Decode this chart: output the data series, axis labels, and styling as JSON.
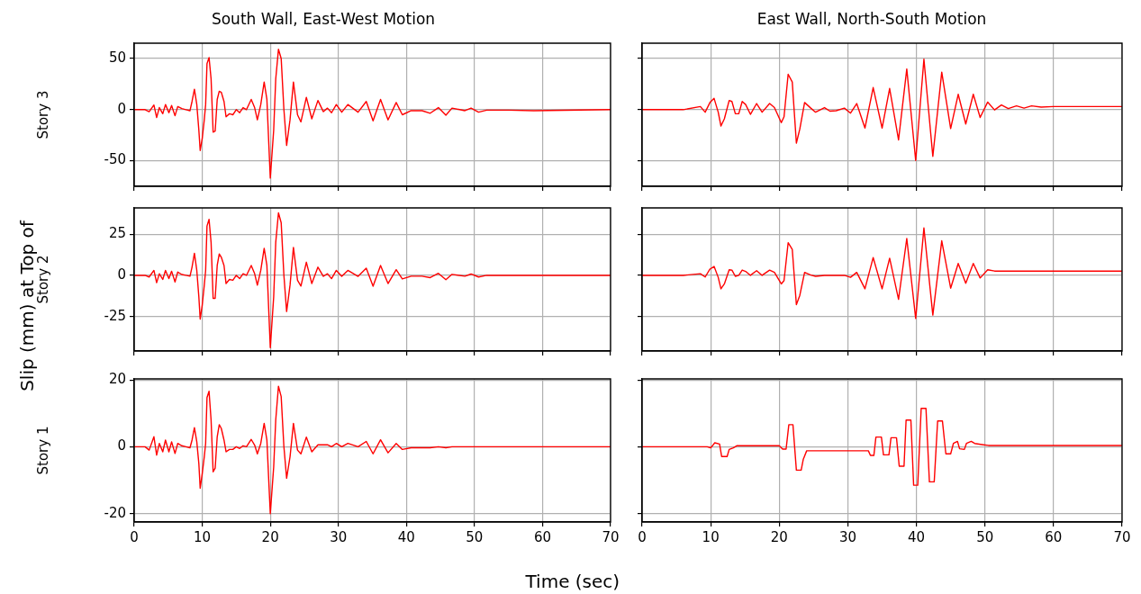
{
  "chart_data": [
    {
      "type": "line",
      "title": "South Wall, East-West Motion",
      "ylabel": "Story 3",
      "annotations": [
        "Slip (mm) at Top of",
        "Time (sec)"
      ],
      "grid": true,
      "tick_labels": "y",
      "xlim": [
        0,
        70
      ],
      "xticks": [
        0,
        10,
        20,
        30,
        40,
        50,
        60,
        70
      ],
      "ylim": [
        -75,
        65
      ],
      "yticks": [
        -50,
        0,
        50
      ],
      "x": [
        0,
        1.6,
        2.2,
        2.9,
        3.3,
        3.7,
        4.2,
        4.6,
        5.1,
        5.5,
        6.0,
        6.4,
        7.0,
        7.6,
        8.2,
        8.5,
        8.85,
        9.2,
        9.5,
        9.7,
        10.0,
        10.3,
        10.5,
        10.7,
        11.0,
        11.3,
        11.6,
        11.9,
        12.2,
        12.5,
        12.8,
        13.2,
        13.5,
        14.0,
        14.5,
        15.0,
        15.5,
        16.0,
        16.5,
        17.2,
        17.7,
        18.1,
        18.6,
        19.1,
        19.5,
        20.0,
        20.5,
        20.8,
        21.2,
        21.6,
        22.0,
        22.4,
        22.9,
        23.4,
        24.0,
        24.5,
        25.3,
        26.1,
        27.0,
        27.8,
        28.4,
        29.0,
        29.7,
        30.5,
        31.4,
        32.9,
        34.1,
        35.1,
        36.2,
        37.3,
        38.5,
        39.4,
        40.7,
        42.3,
        43.5,
        44.7,
        45.8,
        46.7,
        48.6,
        49.5,
        50.6,
        51.8,
        55,
        58.7,
        70
      ],
      "series": [
        {
          "color": "#ff0000",
          "values": [
            0,
            0,
            -2,
            4.5,
            -7.7,
            2,
            -4,
            5,
            -3,
            4,
            -6,
            3,
            1,
            0,
            -1,
            8,
            20,
            5,
            -20,
            -40,
            -28,
            -10,
            5,
            45,
            51,
            30,
            -22,
            -21,
            10,
            18,
            17,
            8,
            -7,
            -4,
            -5,
            0,
            -3,
            2,
            0,
            10,
            2,
            -10,
            5,
            27,
            10,
            -67,
            -20,
            30,
            59,
            50,
            0,
            -35,
            -10,
            27,
            -5,
            -12,
            12,
            -9,
            9,
            -2,
            1.5,
            -3,
            5,
            -2.5,
            5,
            -2.5,
            8,
            -11,
            10,
            -10,
            7,
            -5,
            -1,
            -1,
            -3.5,
            2,
            -5.5,
            1.5,
            -1,
            1.5,
            -2.5,
            -0.5,
            -0.5,
            -1,
            0
          ]
        }
      ]
    },
    {
      "type": "line",
      "title": "East Wall, North-South Motion",
      "grid": true,
      "tick_labels": false,
      "xlim": [
        0,
        70
      ],
      "xticks": [
        0,
        10,
        20,
        30,
        40,
        50,
        60,
        70
      ],
      "ylim": [
        -75,
        65
      ],
      "yticks": [
        -50,
        0,
        50
      ],
      "x": [
        0,
        3,
        6,
        8.5,
        9.2,
        9.9,
        10.5,
        11.1,
        11.5,
        12.0,
        12.7,
        13.1,
        13.6,
        14.1,
        14.6,
        15.1,
        15.8,
        16.7,
        17.5,
        18.6,
        19.3,
        20.3,
        20.7,
        21.3,
        21.9,
        22.5,
        23.0,
        23.7,
        24.6,
        25.3,
        26.6,
        27.4,
        28.3,
        29.5,
        30.4,
        31.3,
        32.5,
        33.7,
        35.0,
        36.1,
        37.4,
        38.6,
        39.9,
        41.1,
        42.4,
        43.7,
        45.0,
        46.1,
        47.2,
        48.3,
        49.3,
        50.4,
        51.4,
        52.4,
        53.4,
        54.6,
        55.7,
        56.8,
        58.2,
        60,
        70
      ],
      "series": [
        {
          "color": "#ff0000",
          "values": [
            0,
            0,
            0,
            3,
            -2.5,
            7,
            11,
            -2.5,
            -16,
            -9,
            9,
            8,
            -4,
            -4,
            8,
            5,
            -4.6,
            6,
            -2.5,
            6,
            2,
            -12.7,
            -7,
            34.6,
            27,
            -32.7,
            -19,
            7,
            1.5,
            -2.5,
            2,
            -1.5,
            -1,
            1.5,
            -3.4,
            6,
            -18,
            21.6,
            -18,
            20.7,
            -29.6,
            39.8,
            -49.7,
            49.4,
            -45.7,
            36.7,
            -18.5,
            15,
            -14,
            15,
            -7.7,
            7.4,
            -0.3,
            4.6,
            1,
            3.7,
            1.5,
            3.7,
            2.5,
            3,
            3
          ]
        }
      ]
    },
    {
      "type": "line",
      "ylabel": "Story 2",
      "grid": true,
      "tick_labels": "y",
      "xlim": [
        0,
        70
      ],
      "xticks": [
        0,
        10,
        20,
        30,
        40,
        50,
        60,
        70
      ],
      "ylim": [
        -46,
        41
      ],
      "yticks": [
        -25,
        0,
        25
      ],
      "x": [
        0,
        1.6,
        2.2,
        2.9,
        3.3,
        3.7,
        4.2,
        4.6,
        5.1,
        5.5,
        6.0,
        6.4,
        7.0,
        7.6,
        8.2,
        8.5,
        8.85,
        9.2,
        9.5,
        9.7,
        10.0,
        10.3,
        10.5,
        10.7,
        11.0,
        11.3,
        11.6,
        11.9,
        12.2,
        12.5,
        12.8,
        13.2,
        13.5,
        14.0,
        14.5,
        15.0,
        15.5,
        16.0,
        16.5,
        17.2,
        17.7,
        18.1,
        18.6,
        19.1,
        19.5,
        20.0,
        20.5,
        20.8,
        21.2,
        21.6,
        22.0,
        22.4,
        22.9,
        23.4,
        24.0,
        24.5,
        25.3,
        26.1,
        27.0,
        27.8,
        28.4,
        29.0,
        29.7,
        30.5,
        31.4,
        32.9,
        34.1,
        35.1,
        36.2,
        37.3,
        38.5,
        39.4,
        40.7,
        42.3,
        43.5,
        44.7,
        45.8,
        46.7,
        48.6,
        49.5,
        50.6,
        51.8,
        55,
        58.7,
        70
      ],
      "series": [
        {
          "color": "#ff0000",
          "values": [
            0,
            0,
            -1,
            3,
            -4.5,
            1,
            -2.5,
            3,
            -2,
            2.5,
            -4,
            2,
            0.5,
            0,
            -0.5,
            5,
            13.4,
            3,
            -13,
            -26.6,
            -18,
            -6,
            3,
            30,
            34,
            20,
            -14,
            -14,
            6,
            13,
            11,
            6,
            -5,
            -2.5,
            -3,
            0,
            -2,
            1,
            0,
            6,
            1,
            -6,
            3,
            16.4,
            6,
            -44,
            -13,
            20,
            38,
            32,
            0,
            -22,
            -6,
            17,
            -3,
            -6.5,
            8,
            -5,
            5,
            -0.6,
            1,
            -2,
            3,
            -0.6,
            3,
            -0.6,
            4.4,
            -6.6,
            6,
            -5,
            3.4,
            -2.2,
            -0.5,
            -0.5,
            -1.4,
            1.2,
            -2.6,
            0.6,
            -0.5,
            0.8,
            -1,
            0,
            0,
            0,
            0
          ]
        }
      ]
    },
    {
      "type": "line",
      "grid": true,
      "tick_labels": false,
      "xlim": [
        0,
        70
      ],
      "xticks": [
        0,
        10,
        20,
        30,
        40,
        50,
        60,
        70
      ],
      "ylim": [
        -46,
        41
      ],
      "yticks": [
        -25,
        0,
        25
      ],
      "x": [
        0,
        3,
        6,
        8.5,
        9.2,
        9.9,
        10.5,
        11.1,
        11.5,
        12.0,
        12.7,
        13.1,
        13.6,
        14.1,
        14.6,
        15.1,
        15.8,
        16.7,
        17.5,
        18.6,
        19.3,
        20.3,
        20.7,
        21.3,
        21.9,
        22.5,
        23.0,
        23.7,
        24.6,
        25.3,
        26.6,
        27.4,
        28.3,
        29.5,
        30.4,
        31.3,
        32.5,
        33.7,
        35.0,
        36.1,
        37.4,
        38.6,
        39.9,
        41.1,
        42.4,
        43.7,
        45.0,
        46.1,
        47.2,
        48.3,
        49.3,
        50.4,
        51.4,
        52.4,
        53.4,
        54.6,
        55.7,
        56.8,
        58.2,
        60,
        70
      ],
      "series": [
        {
          "color": "#ff0000",
          "values": [
            0,
            0,
            0,
            1,
            -1,
            3.8,
            5.4,
            -1.2,
            -8.2,
            -5.2,
            3.4,
            3.2,
            -0.6,
            0,
            3.2,
            2.4,
            0,
            2.8,
            0,
            3.2,
            1.8,
            -5.2,
            -3.2,
            19.8,
            15.8,
            -17.8,
            -12.2,
            1.8,
            0.2,
            -0.6,
            0,
            0,
            0,
            0,
            -1.2,
            1.8,
            -8.2,
            10.8,
            -8.2,
            10.4,
            -14.6,
            22.4,
            -26.2,
            28.8,
            -24.2,
            21,
            -7.8,
            7.2,
            -4.8,
            7.2,
            -1.6,
            3.4,
            2.6,
            2.6,
            2.6,
            2.6,
            2.6,
            2.6,
            2.6,
            2.6,
            2.6
          ]
        }
      ]
    },
    {
      "type": "line",
      "ylabel": "Story 1",
      "grid": true,
      "xlim": [
        0,
        70
      ],
      "xticks": [
        0,
        10,
        20,
        30,
        40,
        50,
        60,
        70
      ],
      "ylim": [
        -22.5,
        20.3
      ],
      "yticks": [
        -20,
        0,
        20
      ],
      "x": [
        0,
        1.6,
        2.2,
        2.9,
        3.3,
        3.7,
        4.2,
        4.6,
        5.1,
        5.5,
        6.0,
        6.4,
        7.0,
        7.6,
        8.2,
        8.5,
        8.85,
        9.2,
        9.5,
        9.7,
        10.0,
        10.3,
        10.5,
        10.7,
        11.0,
        11.3,
        11.6,
        11.9,
        12.2,
        12.5,
        12.8,
        13.2,
        13.5,
        14.0,
        14.5,
        15.0,
        15.5,
        16.0,
        16.5,
        17.2,
        17.7,
        18.1,
        18.6,
        19.1,
        19.5,
        20.0,
        20.5,
        20.8,
        21.2,
        21.6,
        22.0,
        22.4,
        22.9,
        23.4,
        24.0,
        24.5,
        25.3,
        26.1,
        27.0,
        27.8,
        28.4,
        29.0,
        29.7,
        30.5,
        31.4,
        32.9,
        34.1,
        35.1,
        36.2,
        37.3,
        38.5,
        39.4,
        40.7,
        42.3,
        43.5,
        44.7,
        45.8,
        46.7,
        48.6,
        49.5,
        50.6,
        51.8,
        55,
        58.7,
        70
      ],
      "series": [
        {
          "color": "#ff0000",
          "values": [
            0,
            0,
            -1,
            3,
            -2.5,
            1,
            -1.5,
            2,
            -1.5,
            1.5,
            -2,
            1,
            0.3,
            0,
            -0.3,
            2,
            5.7,
            1.5,
            -5,
            -12.4,
            -8,
            -3,
            1,
            14.7,
            16.6,
            8,
            -7.5,
            -6.4,
            3,
            6.6,
            5.5,
            2,
            -1.5,
            -0.8,
            -0.8,
            0,
            -0.5,
            0.3,
            0,
            2.2,
            0.5,
            -2.1,
            1,
            7,
            2,
            -20,
            -6,
            8,
            18.1,
            15,
            0,
            -9.4,
            -3,
            7,
            -1,
            -2.1,
            2.9,
            -1.5,
            0.6,
            0.6,
            0.6,
            0,
            1,
            0,
            1,
            0,
            1.6,
            -2.1,
            2.1,
            -1.8,
            1,
            -0.8,
            -0.3,
            -0.3,
            -0.3,
            0,
            -0.3,
            0,
            0,
            0,
            0,
            0,
            0,
            0,
            0
          ]
        }
      ]
    },
    {
      "type": "line",
      "grid": true,
      "tick_labels": "x",
      "xlim": [
        0,
        70
      ],
      "xticks": [
        0,
        10,
        20,
        30,
        40,
        50,
        60,
        70
      ],
      "ylim": [
        -22.5,
        20.3
      ],
      "yticks": [
        -20,
        0,
        20
      ],
      "x": [
        0,
        9.5,
        10,
        10.3,
        10.6,
        11.3,
        11.6,
        12.4,
        12.7,
        13.3,
        13.8,
        20,
        20.5,
        21.0,
        21.4,
        22.0,
        22.5,
        23.2,
        23.5,
        24.0,
        33.0,
        33.3,
        33.8,
        34.1,
        34.9,
        35.2,
        36.0,
        36.3,
        37.1,
        37.5,
        38.2,
        38.5,
        39.2,
        39.6,
        40.2,
        40.7,
        41.4,
        41.9,
        42.6,
        43.1,
        43.8,
        44.3,
        45.0,
        45.4,
        46.0,
        46.3,
        47.0,
        47.3,
        48.0,
        48.5,
        49.8,
        50.5,
        70
      ],
      "series": [
        {
          "color": "#ff0000",
          "values": [
            0,
            0,
            -0.3,
            0.4,
            1.2,
            0.8,
            -2.9,
            -2.9,
            -0.8,
            -0.3,
            0.3,
            0.3,
            -0.7,
            -0.7,
            6.6,
            6.6,
            -7,
            -7,
            -3.8,
            -1.2,
            -1.2,
            -2.6,
            -2.6,
            2.9,
            2.9,
            -2.4,
            -2.4,
            2.7,
            2.7,
            -5.8,
            -5.8,
            8,
            8,
            -11.5,
            -11.5,
            11.5,
            11.5,
            -10.5,
            -10.5,
            7.7,
            7.7,
            -2.1,
            -2.1,
            1,
            1.6,
            -0.6,
            -0.8,
            1,
            1.6,
            1,
            0.6,
            0.4,
            0.4
          ]
        }
      ]
    }
  ]
}
